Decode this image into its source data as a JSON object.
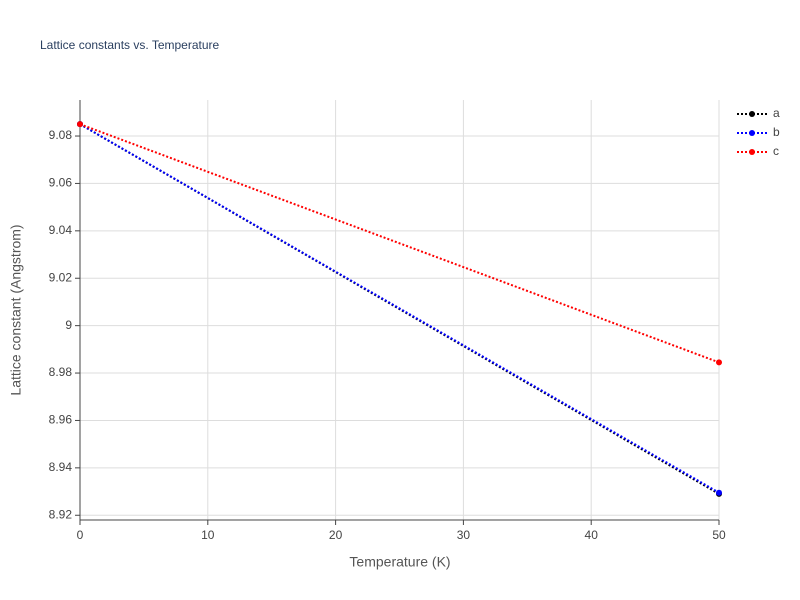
{
  "chart_data": {
    "type": "line",
    "title": "Lattice constants vs. Temperature",
    "x_label": "Temperature (K)",
    "y_label": "Lattice constant (Angstrom)",
    "x": [
      0,
      50
    ],
    "series": [
      {
        "name": "a",
        "color": "#000000",
        "values": [
          9.085,
          8.929
        ]
      },
      {
        "name": "b",
        "color": "#0000ff",
        "values": [
          9.085,
          8.9295
        ]
      },
      {
        "name": "c",
        "color": "#ff0000",
        "values": [
          9.085,
          8.9845
        ]
      }
    ],
    "xlim": [
      0,
      50
    ],
    "xticks": [
      0,
      10,
      20,
      30,
      40,
      50
    ],
    "ylim": [
      8.918,
      9.0952
    ],
    "yticks": [
      8.92,
      8.94,
      8.96,
      8.98,
      9,
      9.02,
      9.04,
      9.06,
      9.08
    ],
    "grid": true,
    "legend": "top-right",
    "line_style": "dotted"
  }
}
